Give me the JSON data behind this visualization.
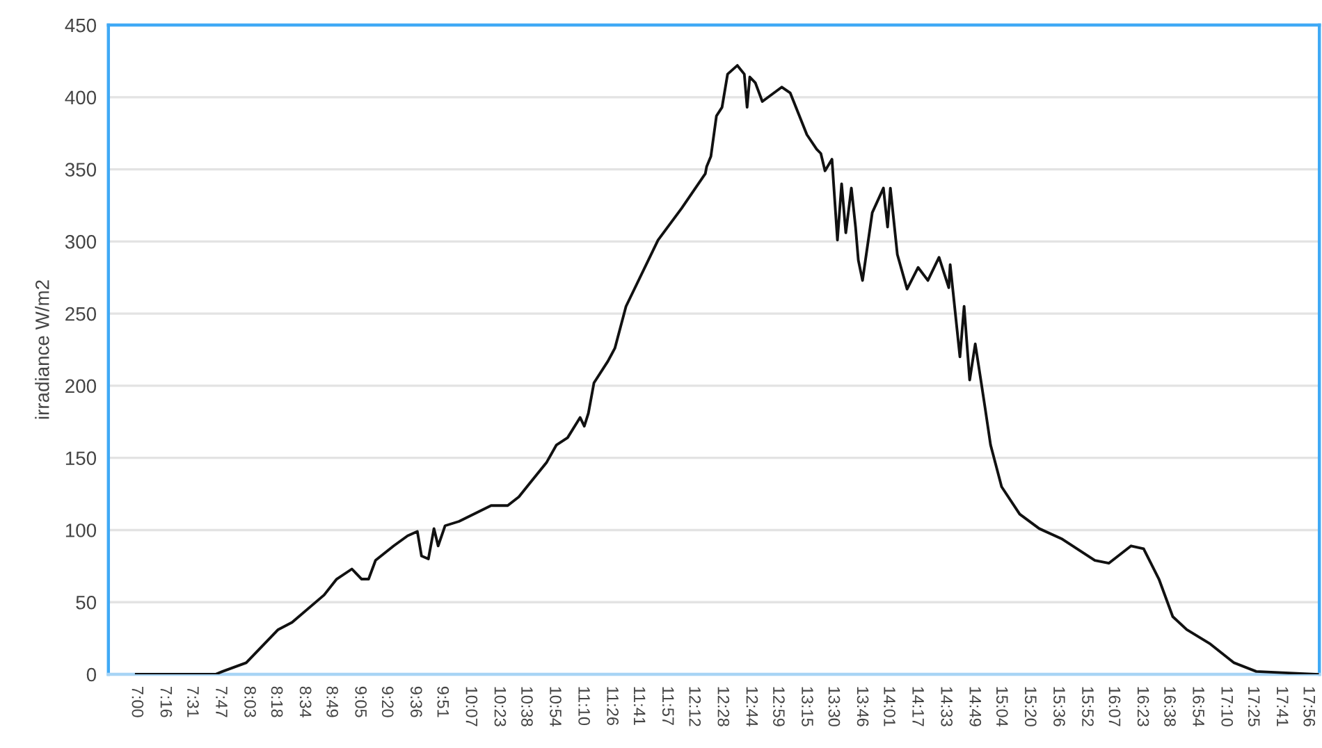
{
  "chart_data": {
    "type": "line",
    "ylabel": "irradiance W/m2",
    "x": [
      7.0,
      7.74,
      7.805,
      8.026,
      8.324,
      8.454,
      8.753,
      8.87,
      9.012,
      9.103,
      9.168,
      9.233,
      9.402,
      9.532,
      9.623,
      9.662,
      9.726,
      9.778,
      9.817,
      9.882,
      10.012,
      10.311,
      10.466,
      10.57,
      10.83,
      10.921,
      11.025,
      11.142,
      11.181,
      11.219,
      11.271,
      11.401,
      11.466,
      11.57,
      11.869,
      12.089,
      12.31,
      12.323,
      12.362,
      12.414,
      12.466,
      12.518,
      12.609,
      12.674,
      12.7,
      12.725,
      12.777,
      12.842,
      13.024,
      13.102,
      13.258,
      13.349,
      13.388,
      13.427,
      13.492,
      13.543,
      13.582,
      13.621,
      13.673,
      13.712,
      13.738,
      13.777,
      13.868,
      13.972,
      14.011,
      14.037,
      14.102,
      14.193,
      14.296,
      14.387,
      14.491,
      14.582,
      14.595,
      14.686,
      14.725,
      14.777,
      14.829,
      14.881,
      14.92,
      14.972,
      15.075,
      15.244,
      15.426,
      15.634,
      15.945,
      16.075,
      16.283,
      16.4,
      16.543,
      16.672,
      16.802,
      17.023,
      17.244,
      17.451,
      18.023
    ],
    "series": [
      {
        "color": "#111111",
        "values": [
          0,
          0,
          2,
          8,
          31,
          36,
          55,
          66,
          73,
          66,
          66,
          79,
          89,
          96,
          99,
          82,
          80,
          101,
          89,
          103,
          106,
          117,
          117,
          123,
          147,
          159,
          164,
          178,
          172,
          181,
          202,
          217,
          226,
          255,
          301,
          323,
          347,
          352,
          359,
          387,
          393,
          416,
          422,
          416,
          393,
          414,
          410,
          397,
          407,
          403,
          374,
          364,
          361,
          349,
          357,
          301,
          340,
          306,
          337,
          310,
          287,
          273,
          320,
          337,
          310,
          337,
          291,
          267,
          282,
          273,
          289,
          268,
          284,
          220,
          255,
          204,
          229,
          204,
          185,
          159,
          130,
          111,
          101,
          94,
          79,
          77,
          89,
          87,
          66,
          40,
          31,
          21,
          8,
          2,
          0
        ]
      }
    ],
    "xlim": [
      6.74,
      18.04
    ],
    "xticks": [
      {
        "value": 7,
        "label": "7:00"
      },
      {
        "value": 7.2667,
        "label": "7:16"
      },
      {
        "value": 7.5167,
        "label": "7:31"
      },
      {
        "value": 7.7833,
        "label": "7:47"
      },
      {
        "value": 8.05,
        "label": "8:03"
      },
      {
        "value": 8.3,
        "label": "8:18"
      },
      {
        "value": 8.5667,
        "label": "8:34"
      },
      {
        "value": 8.8167,
        "label": "8:49"
      },
      {
        "value": 9.0833,
        "label": "9:05"
      },
      {
        "value": 9.3333,
        "label": "9:20"
      },
      {
        "value": 9.6,
        "label": "9:36"
      },
      {
        "value": 9.85,
        "label": "9:51"
      },
      {
        "value": 10.1167,
        "label": "10:07"
      },
      {
        "value": 10.3833,
        "label": "10:23"
      },
      {
        "value": 10.6333,
        "label": "10:38"
      },
      {
        "value": 10.9,
        "label": "10:54"
      },
      {
        "value": 11.1667,
        "label": "11:10"
      },
      {
        "value": 11.4333,
        "label": "11:26"
      },
      {
        "value": 11.6833,
        "label": "11:41"
      },
      {
        "value": 11.95,
        "label": "11:57"
      },
      {
        "value": 12.2,
        "label": "12:12"
      },
      {
        "value": 12.4667,
        "label": "12:28"
      },
      {
        "value": 12.7333,
        "label": "12:44"
      },
      {
        "value": 12.9833,
        "label": "12:59"
      },
      {
        "value": 13.25,
        "label": "13:15"
      },
      {
        "value": 13.5,
        "label": "13:30"
      },
      {
        "value": 13.7667,
        "label": "13:46"
      },
      {
        "value": 14.0167,
        "label": "14:01"
      },
      {
        "value": 14.2833,
        "label": "14:17"
      },
      {
        "value": 14.55,
        "label": "14:33"
      },
      {
        "value": 14.8167,
        "label": "14:49"
      },
      {
        "value": 15.0667,
        "label": "15:04"
      },
      {
        "value": 15.3333,
        "label": "15:20"
      },
      {
        "value": 15.6,
        "label": "15:36"
      },
      {
        "value": 15.8667,
        "label": "15:52"
      },
      {
        "value": 16.1167,
        "label": "16:07"
      },
      {
        "value": 16.3833,
        "label": "16:23"
      },
      {
        "value": 16.6333,
        "label": "16:38"
      },
      {
        "value": 16.9,
        "label": "16:54"
      },
      {
        "value": 17.1667,
        "label": "17:10"
      },
      {
        "value": 17.4167,
        "label": "17:25"
      },
      {
        "value": 17.6833,
        "label": "17:41"
      },
      {
        "value": 17.9333,
        "label": "17:56"
      }
    ],
    "ylim": [
      0,
      450
    ],
    "yticks": [
      0,
      50,
      100,
      150,
      200,
      250,
      300,
      350,
      400,
      450
    ],
    "grid": "y",
    "legend": false,
    "marker": "none",
    "line_style": "solid"
  }
}
